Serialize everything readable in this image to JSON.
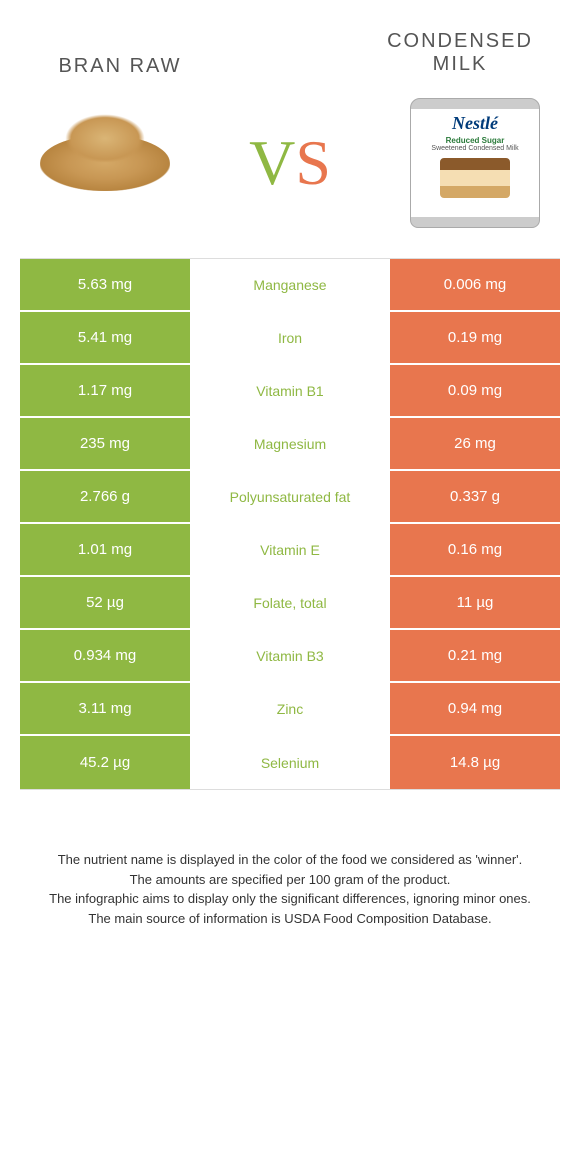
{
  "header": {
    "left_title": "Bran raw",
    "right_title": "Condensed milk",
    "vs_v": "V",
    "vs_s": "S",
    "can_logo": "Nestlé",
    "can_line1": "Reduced Sugar",
    "can_line2": "Sweetened Condensed Milk"
  },
  "colors": {
    "left": "#8fb843",
    "right": "#e8764e",
    "background": "#ffffff"
  },
  "rows": [
    {
      "left": "5.63 mg",
      "nutrient": "Manganese",
      "right": "0.006 mg",
      "winner": "left"
    },
    {
      "left": "5.41 mg",
      "nutrient": "Iron",
      "right": "0.19 mg",
      "winner": "left"
    },
    {
      "left": "1.17 mg",
      "nutrient": "Vitamin B1",
      "right": "0.09 mg",
      "winner": "left"
    },
    {
      "left": "235 mg",
      "nutrient": "Magnesium",
      "right": "26 mg",
      "winner": "left"
    },
    {
      "left": "2.766 g",
      "nutrient": "Polyunsaturated fat",
      "right": "0.337 g",
      "winner": "left"
    },
    {
      "left": "1.01 mg",
      "nutrient": "Vitamin E",
      "right": "0.16 mg",
      "winner": "left"
    },
    {
      "left": "52 µg",
      "nutrient": "Folate, total",
      "right": "11 µg",
      "winner": "left"
    },
    {
      "left": "0.934 mg",
      "nutrient": "Vitamin B3",
      "right": "0.21 mg",
      "winner": "left"
    },
    {
      "left": "3.11 mg",
      "nutrient": "Zinc",
      "right": "0.94 mg",
      "winner": "left"
    },
    {
      "left": "45.2 µg",
      "nutrient": "Selenium",
      "right": "14.8 µg",
      "winner": "left"
    }
  ],
  "footer": {
    "line1": "The nutrient name is displayed in the color of the food we considered as 'winner'.",
    "line2": "The amounts are specified per 100 gram of the product.",
    "line3": "The infographic aims to display only the significant differences, ignoring minor ones.",
    "line4": "The main source of information is USDA Food Composition Database."
  }
}
